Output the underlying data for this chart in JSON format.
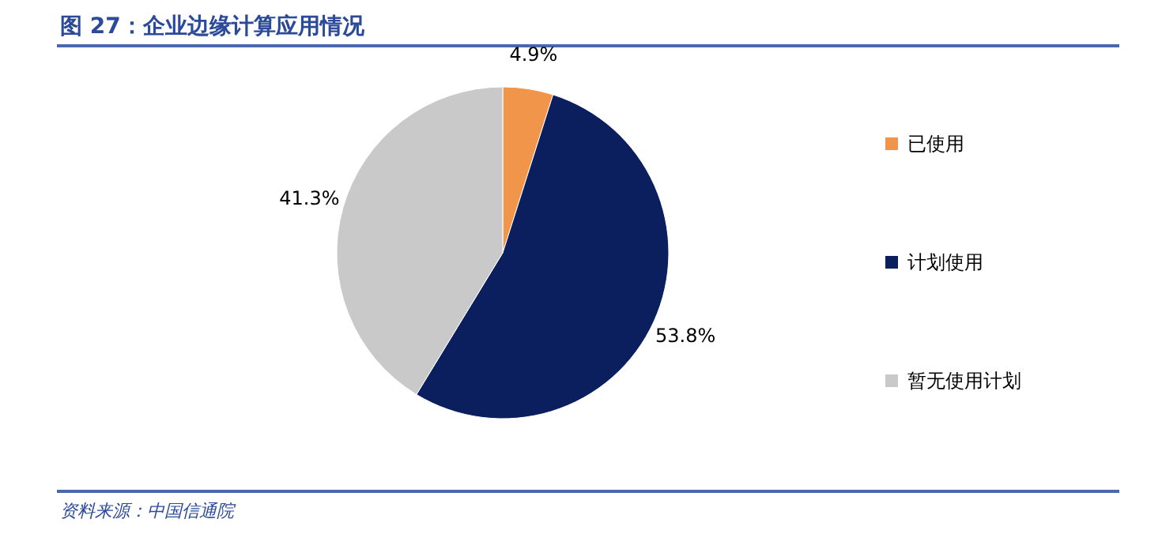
{
  "chart_data": {
    "type": "pie",
    "title": "图 27：企业边缘计算应用情况",
    "categories": [
      "已使用",
      "计划使用",
      "暂无使用计划"
    ],
    "values": [
      4.9,
      53.8,
      41.3
    ],
    "value_labels": [
      "4.9%",
      "53.8%",
      "41.3%"
    ],
    "colors": [
      "#f0954a",
      "#0b1f5e",
      "#c9c9c9"
    ],
    "legend": "right",
    "annotations": [
      "资料来源：中国信通院"
    ]
  }
}
